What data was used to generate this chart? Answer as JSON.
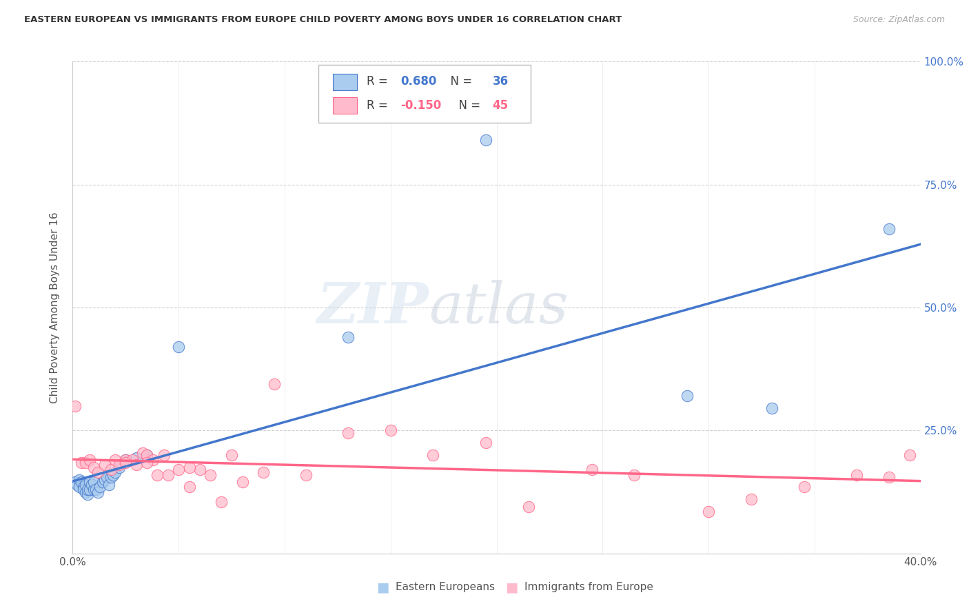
{
  "title": "EASTERN EUROPEAN VS IMMIGRANTS FROM EUROPE CHILD POVERTY AMONG BOYS UNDER 16 CORRELATION CHART",
  "source": "Source: ZipAtlas.com",
  "ylabel": "Child Poverty Among Boys Under 16",
  "xlim": [
    0.0,
    0.4
  ],
  "ylim": [
    0.0,
    1.0
  ],
  "x_ticks": [
    0.0,
    0.05,
    0.1,
    0.15,
    0.2,
    0.25,
    0.3,
    0.35,
    0.4
  ],
  "y_ticks": [
    0.0,
    0.25,
    0.5,
    0.75,
    1.0
  ],
  "blue_color": "#AACCEE",
  "pink_color": "#FFBBCC",
  "line_blue": "#4477CC",
  "line_pink": "#FF6688",
  "legend_r_blue": "0.680",
  "legend_n_blue": "36",
  "legend_r_pink": "-0.150",
  "legend_n_pink": "45",
  "watermark_zip": "ZIP",
  "watermark_atlas": "atlas",
  "blue_x": [
    0.001,
    0.002,
    0.003,
    0.003,
    0.004,
    0.005,
    0.005,
    0.006,
    0.006,
    0.007,
    0.007,
    0.008,
    0.008,
    0.009,
    0.01,
    0.01,
    0.011,
    0.012,
    0.013,
    0.014,
    0.015,
    0.016,
    0.017,
    0.018,
    0.019,
    0.02,
    0.022,
    0.025,
    0.03,
    0.035,
    0.05,
    0.13,
    0.195,
    0.29,
    0.33,
    0.385
  ],
  "blue_y": [
    0.145,
    0.14,
    0.15,
    0.135,
    0.145,
    0.135,
    0.13,
    0.125,
    0.14,
    0.12,
    0.13,
    0.13,
    0.145,
    0.14,
    0.13,
    0.145,
    0.13,
    0.125,
    0.135,
    0.145,
    0.15,
    0.155,
    0.14,
    0.155,
    0.16,
    0.165,
    0.175,
    0.19,
    0.195,
    0.2,
    0.42,
    0.44,
    0.84,
    0.32,
    0.295,
    0.66
  ],
  "pink_x": [
    0.001,
    0.004,
    0.006,
    0.008,
    0.01,
    0.012,
    0.015,
    0.018,
    0.02,
    0.022,
    0.025,
    0.028,
    0.03,
    0.033,
    0.035,
    0.038,
    0.04,
    0.043,
    0.045,
    0.05,
    0.055,
    0.06,
    0.065,
    0.07,
    0.08,
    0.095,
    0.11,
    0.13,
    0.15,
    0.17,
    0.195,
    0.215,
    0.245,
    0.265,
    0.3,
    0.32,
    0.345,
    0.37,
    0.385,
    0.395,
    0.025,
    0.035,
    0.055,
    0.075,
    0.09
  ],
  "pink_y": [
    0.3,
    0.185,
    0.185,
    0.19,
    0.175,
    0.165,
    0.18,
    0.17,
    0.19,
    0.18,
    0.19,
    0.19,
    0.18,
    0.205,
    0.2,
    0.19,
    0.16,
    0.2,
    0.16,
    0.17,
    0.135,
    0.17,
    0.16,
    0.105,
    0.145,
    0.345,
    0.16,
    0.245,
    0.25,
    0.2,
    0.225,
    0.095,
    0.17,
    0.16,
    0.085,
    0.11,
    0.135,
    0.16,
    0.155,
    0.2,
    0.185,
    0.185,
    0.175,
    0.2,
    0.165
  ]
}
